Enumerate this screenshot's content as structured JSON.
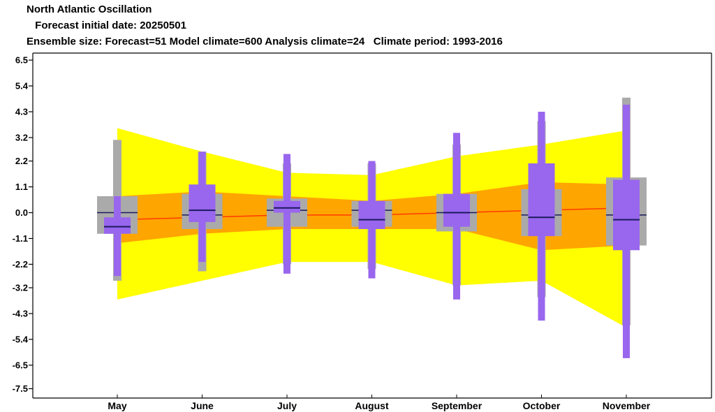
{
  "chart_data": {
    "type": "box",
    "title": "North Atlantic Oscillation",
    "subtitle_1": " Forecast initial date: 20250501",
    "subtitle_2": "Ensemble size: Forecast=51 Model climate=600 Analysis climate=24   Climate period: 1993-2016",
    "categories": [
      "May",
      "June",
      "July",
      "August",
      "September",
      "October",
      "November"
    ],
    "ylim": [
      -7.9,
      6.8
    ],
    "yticks": [
      "6.5",
      "5.4",
      "4.3",
      "3.2",
      "2.2",
      "1.1",
      "0.0",
      "-1.1",
      "-2.2",
      "-3.2",
      "-4.3",
      "-5.4",
      "-6.5",
      "-7.5"
    ],
    "ytick_values": [
      6.5,
      5.4,
      4.3,
      3.2,
      2.2,
      1.1,
      0.0,
      -1.1,
      -2.2,
      -3.2,
      -4.3,
      -5.4,
      -6.5,
      -7.5
    ],
    "colors": {
      "outer_band": "#ffff00",
      "inner_band": "#ffa500",
      "analysis_line": "#ff3b00",
      "model_climate_box": "#aaaaaa",
      "forecast_box": "#9966ee",
      "median_line": "#1a1a5e"
    },
    "climate_band_outer": {
      "upper": [
        3.6,
        2.6,
        1.7,
        1.6,
        2.4,
        2.9,
        3.5
      ],
      "lower": [
        -3.7,
        -2.9,
        -2.1,
        -2.1,
        -3.1,
        -2.9,
        -4.9
      ]
    },
    "climate_band_inner": {
      "upper": [
        0.7,
        0.9,
        0.7,
        0.5,
        0.8,
        1.3,
        1.2
      ],
      "lower": [
        -1.3,
        -0.9,
        -0.7,
        -0.7,
        -0.7,
        -1.6,
        -1.4
      ]
    },
    "analysis_mean": [
      -0.3,
      -0.2,
      -0.1,
      -0.1,
      0.0,
      0.1,
      0.2
    ],
    "model_climate": [
      {
        "min": -2.9,
        "q1": -0.9,
        "median": 0.0,
        "q3": 0.7,
        "max": 3.1
      },
      {
        "min": -2.5,
        "q1": -0.7,
        "median": -0.1,
        "q3": 0.8,
        "max": 2.6
      },
      {
        "min": -2.2,
        "q1": -0.6,
        "median": 0.1,
        "q3": 0.6,
        "max": 2.1
      },
      {
        "min": -2.4,
        "q1": -0.6,
        "median": 0.1,
        "q3": 0.5,
        "max": 2.1
      },
      {
        "min": -3.1,
        "q1": -0.8,
        "median": 0.0,
        "q3": 0.8,
        "max": 2.9
      },
      {
        "min": -3.6,
        "q1": -1.0,
        "median": -0.1,
        "q3": 1.0,
        "max": 3.9
      },
      {
        "min": -4.8,
        "q1": -1.4,
        "median": -0.1,
        "q3": 1.5,
        "max": 4.9
      }
    ],
    "forecast": [
      {
        "min": -2.7,
        "q1": -0.9,
        "median": -0.6,
        "q3": -0.2,
        "max": 0.7
      },
      {
        "min": -2.1,
        "q1": -0.4,
        "median": 0.1,
        "q3": 1.2,
        "max": 2.6
      },
      {
        "min": -2.6,
        "q1": 0.0,
        "median": 0.2,
        "q3": 0.5,
        "max": 2.5
      },
      {
        "min": -2.8,
        "q1": -0.7,
        "median": -0.3,
        "q3": 0.5,
        "max": 2.2
      },
      {
        "min": -3.7,
        "q1": -0.6,
        "median": 0.0,
        "q3": 0.8,
        "max": 3.4
      },
      {
        "min": -4.6,
        "q1": -1.0,
        "median": -0.2,
        "q3": 2.1,
        "max": 4.3
      },
      {
        "min": -6.2,
        "q1": -1.6,
        "median": -0.3,
        "q3": 1.4,
        "max": 4.6
      }
    ]
  }
}
